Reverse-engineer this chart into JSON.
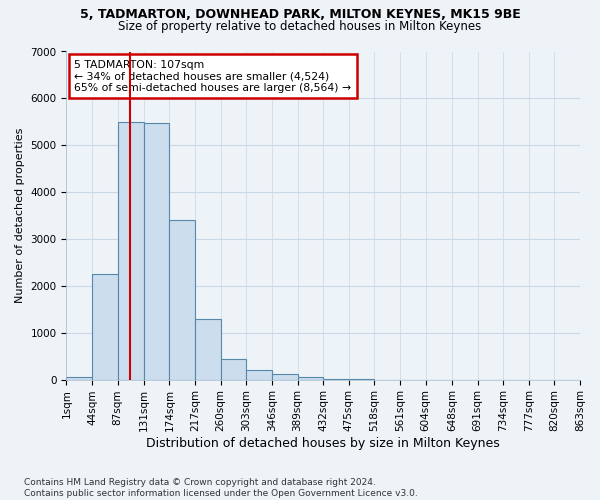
{
  "title1": "5, TADMARTON, DOWNHEAD PARK, MILTON KEYNES, MK15 9BE",
  "title2": "Size of property relative to detached houses in Milton Keynes",
  "xlabel": "Distribution of detached houses by size in Milton Keynes",
  "ylabel": "Number of detached properties",
  "footnote1": "Contains HM Land Registry data © Crown copyright and database right 2024.",
  "footnote2": "Contains public sector information licensed under the Open Government Licence v3.0.",
  "annotation_line1": "5 TADMARTON: 107sqm",
  "annotation_line2": "← 34% of detached houses are smaller (4,524)",
  "annotation_line3": "65% of semi-detached houses are larger (8,564) →",
  "bar_color": "#ccdded",
  "bar_edge_color": "#5588aa",
  "vline_color": "#cc0000",
  "vline_x": 107,
  "bins": [
    1,
    44,
    87,
    131,
    174,
    217,
    260,
    303,
    346,
    389,
    432,
    475,
    518,
    561,
    604,
    648,
    691,
    734,
    777,
    820,
    863
  ],
  "bin_labels": [
    "1sqm",
    "44sqm",
    "87sqm",
    "131sqm",
    "174sqm",
    "217sqm",
    "260sqm",
    "303sqm",
    "346sqm",
    "389sqm",
    "432sqm",
    "475sqm",
    "518sqm",
    "561sqm",
    "604sqm",
    "648sqm",
    "691sqm",
    "734sqm",
    "777sqm",
    "820sqm",
    "863sqm"
  ],
  "bar_heights": [
    55,
    2250,
    5500,
    5480,
    3400,
    1300,
    450,
    200,
    130,
    50,
    10,
    5,
    2,
    1,
    1,
    0,
    0,
    0,
    0,
    0
  ],
  "ylim": [
    0,
    7000
  ],
  "yticks": [
    0,
    1000,
    2000,
    3000,
    4000,
    5000,
    6000,
    7000
  ],
  "background_color": "#eef3f8",
  "grid_color": "#c8d8e8",
  "annotation_box_color": "#ffffff",
  "annotation_box_edge_color": "#cc0000",
  "title1_fontsize": 9,
  "title2_fontsize": 8.5,
  "ylabel_fontsize": 8,
  "xlabel_fontsize": 9,
  "tick_fontsize": 7.5,
  "footnote_fontsize": 6.5
}
